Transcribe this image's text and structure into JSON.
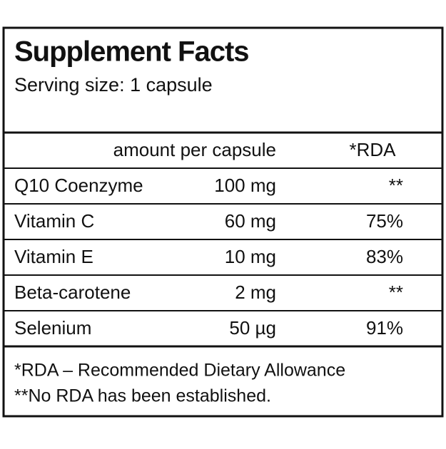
{
  "header": {
    "title": "Supplement Facts",
    "serving_size": "Serving size: 1 capsule"
  },
  "table": {
    "columns": [
      "amount per capsule",
      "*RDA"
    ],
    "rows": [
      [
        "Q10 Coenzyme",
        "100 mg",
        "**"
      ],
      [
        "Vitamin C",
        "60 mg",
        "75%"
      ],
      [
        "Vitamin E",
        "10 mg",
        "83%"
      ],
      [
        "Beta-carotene",
        "2 mg",
        "**"
      ],
      [
        "Selenium",
        "50 µg",
        "91%"
      ]
    ]
  },
  "footnotes": [
    "*RDA – Recommended Dietary Allowance",
    "**No RDA has been established."
  ]
}
